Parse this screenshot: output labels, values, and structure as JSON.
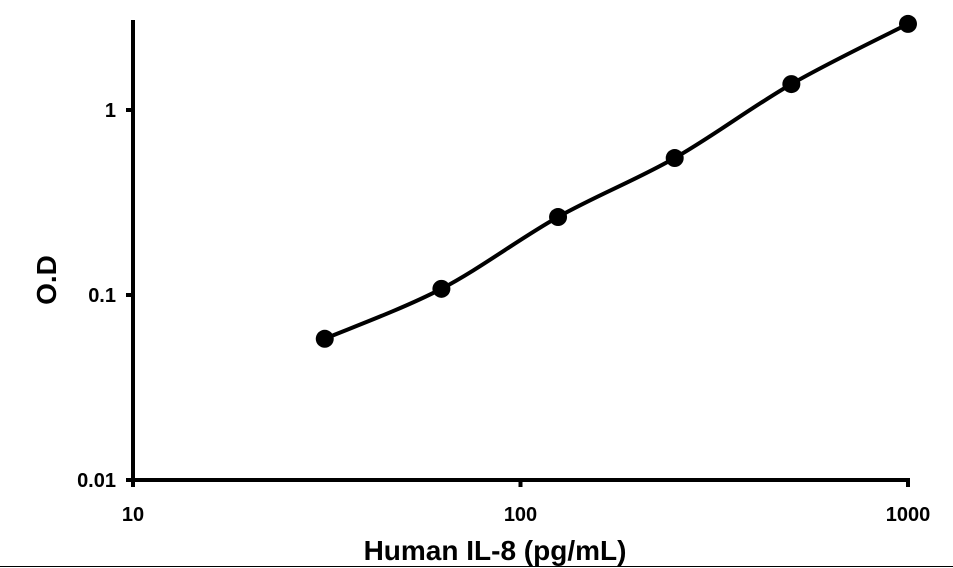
{
  "chart_data": {
    "type": "line",
    "title": "",
    "xlabel": "Human IL-8 (pg/mL)",
    "ylabel": "O.D",
    "x_scale": "log",
    "y_scale": "log",
    "xlim": [
      10,
      1000
    ],
    "ylim": [
      0.01,
      3
    ],
    "x_ticks": [
      10,
      100,
      1000
    ],
    "x_tick_labels": [
      "10",
      "100",
      "1000"
    ],
    "y_ticks": [
      0.01,
      0.1,
      1
    ],
    "y_tick_labels": [
      "0.01",
      "0.1",
      "1"
    ],
    "grid": false,
    "line_color": "#000000",
    "marker": "filled-circle",
    "smoothed": true,
    "x": [
      31.25,
      62.5,
      125,
      250,
      500,
      1000
    ],
    "y": [
      0.058,
      0.108,
      0.264,
      0.55,
      1.38,
      2.92
    ]
  }
}
